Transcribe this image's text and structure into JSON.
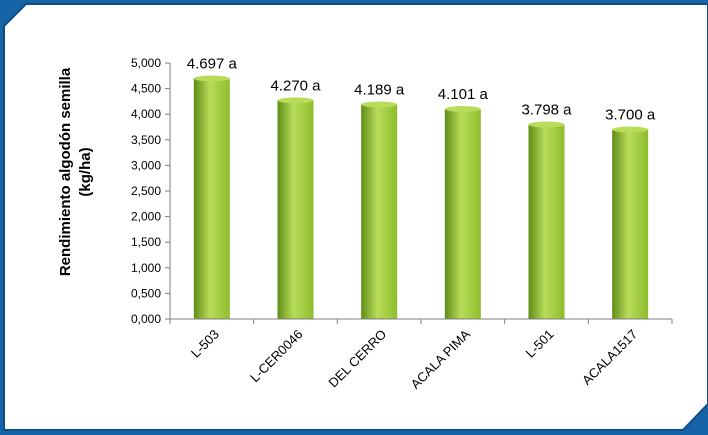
{
  "colors": {
    "background": "#1763a8",
    "panel": "#ffffff",
    "panel_border": "#0f4d86",
    "bar_light": "#b9dc5a",
    "bar_mid": "#8dbd2c",
    "bar_dark": "#5f8d17",
    "axis": "#7f7f7f"
  },
  "chart_data": {
    "type": "bar",
    "categories": [
      "L-503",
      "L-CER0046",
      "DEL CERRO",
      "ACALA PIMA",
      "L-501",
      "ACALA1517"
    ],
    "values": [
      4.697,
      4.27,
      4.189,
      4.101,
      3.798,
      3.7
    ],
    "data_labels": [
      "4.697 a",
      "4.270 a",
      "4.189 a",
      "4.101 a",
      "3.798 a",
      "3.700 a"
    ],
    "ylabel_lines": [
      "Rendimiento algodón semilla",
      "(kg/ha)"
    ],
    "ylim": [
      0,
      5
    ],
    "y_ticks": [
      0,
      0.5,
      1,
      1.5,
      2,
      2.5,
      3,
      3.5,
      4,
      4.5,
      5
    ],
    "y_tick_labels": [
      "0,000",
      "0,500",
      "1,000",
      "1,500",
      "2,000",
      "2,500",
      "3,000",
      "3,500",
      "4,000",
      "4,500",
      "5,000"
    ],
    "grid": false,
    "legend": "none"
  }
}
